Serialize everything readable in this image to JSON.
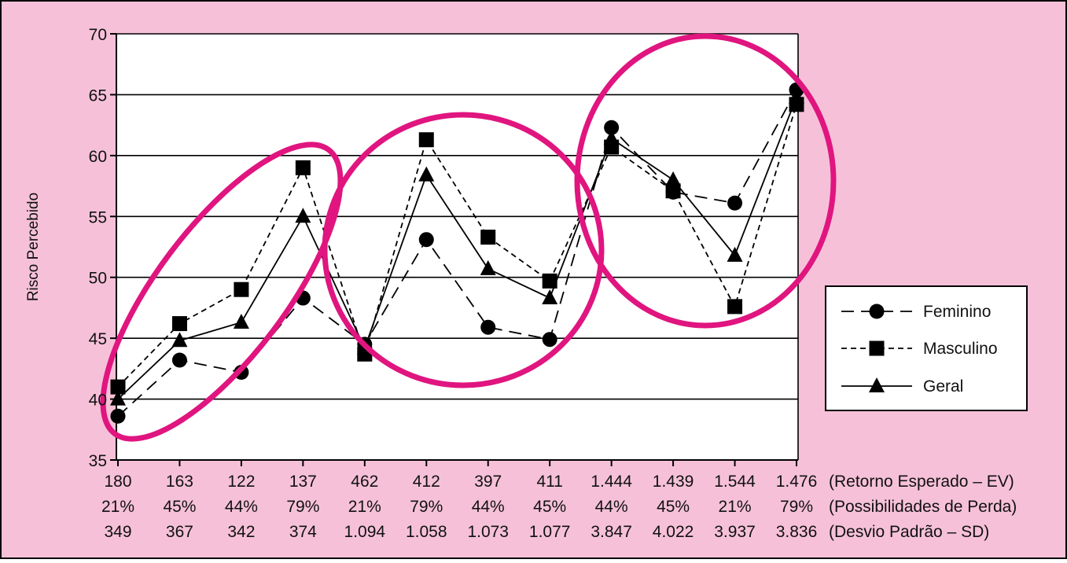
{
  "colors": {
    "background": "#f6c1d8",
    "plot_background": "#ffffff",
    "ellipse": "#e0157f",
    "line": "#000000",
    "grid": "#000000"
  },
  "chart_data": {
    "type": "line",
    "ylabel": "Risco Percebido",
    "ylim": [
      35,
      70
    ],
    "yticks": [
      35,
      40,
      45,
      50,
      55,
      60,
      65,
      70
    ],
    "grid": "horizontal",
    "legend_position": "right",
    "category_rows": [
      {
        "label": "(Retorno Esperado – EV)",
        "values": [
          "180",
          "163",
          "122",
          "137",
          "462",
          "412",
          "397",
          "411",
          "1.444",
          "1.439",
          "1.544",
          "1.476"
        ]
      },
      {
        "label": "(Possibilidades de Perda)",
        "values": [
          "21%",
          "45%",
          "44%",
          "79%",
          "21%",
          "79%",
          "44%",
          "45%",
          "44%",
          "45%",
          "21%",
          "79%"
        ]
      },
      {
        "label": "(Desvio Padrão – SD)",
        "values": [
          "349",
          "367",
          "342",
          "374",
          "1.094",
          "1.058",
          "1.073",
          "1.077",
          "3.847",
          "4.022",
          "3.937",
          "3.836"
        ]
      }
    ],
    "series": [
      {
        "name": "Feminino",
        "marker": "circle",
        "dash": "long-dash",
        "values": [
          38.6,
          43.2,
          42.2,
          48.3,
          44.5,
          53.1,
          45.9,
          44.9,
          62.3,
          57.0,
          56.1,
          65.4
        ]
      },
      {
        "name": "Masculino",
        "marker": "square",
        "dash": "short-dash",
        "values": [
          41.0,
          46.2,
          49.0,
          59.0,
          43.7,
          61.3,
          53.3,
          49.7,
          60.7,
          57.1,
          47.6,
          64.2
        ]
      },
      {
        "name": "Geral",
        "marker": "triangle",
        "dash": "solid",
        "values": [
          40.0,
          44.8,
          46.3,
          55.0,
          44.2,
          58.4,
          50.7,
          48.3,
          61.4,
          58.0,
          51.8,
          64.8
        ]
      }
    ]
  }
}
